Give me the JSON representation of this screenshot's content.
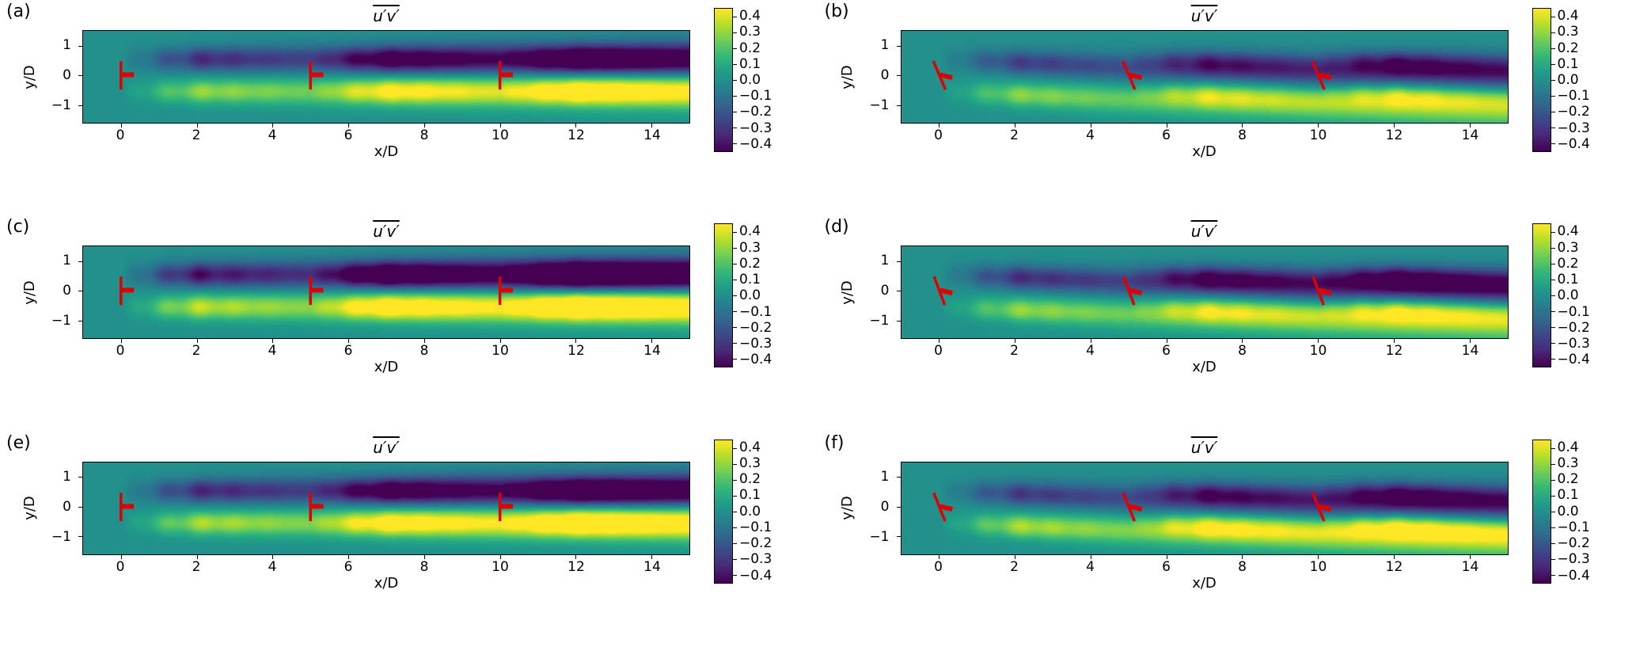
{
  "figure": {
    "background": "#ffffff",
    "description": "Six-panel contour figure of Reynolds shear stress in wind-turbine wakes",
    "turbine_marker_color": "#e00000"
  },
  "palette": {
    "colormap": "viridis",
    "stops": [
      "#440154",
      "#482878",
      "#3e4989",
      "#31688e",
      "#26828e",
      "#1f9e89",
      "#35b779",
      "#6ece58",
      "#b5de2b",
      "#fde725"
    ]
  },
  "chart_data": [
    {
      "panel_label": "(a)",
      "type": "heatmap",
      "title": "u′v′",
      "title_overline": true,
      "xlabel": "x/D",
      "ylabel": "y/D",
      "xlim": [
        -1.0,
        15.0
      ],
      "ylim": [
        -1.6,
        1.5
      ],
      "xtick_values": [
        0,
        2,
        4,
        6,
        8,
        10,
        12,
        14
      ],
      "xtick_labels": [
        "0",
        "2",
        "4",
        "6",
        "8",
        "10",
        "12",
        "14"
      ],
      "ytick_values": [
        1,
        0,
        -1
      ],
      "ytick_labels": [
        "1",
        "0",
        "−1"
      ],
      "colorbar": {
        "vmin": -0.45,
        "vmax": 0.45,
        "tick_values": [
          0.4,
          0.3,
          0.2,
          0.1,
          0.0,
          -0.1,
          -0.2,
          -0.3,
          -0.4
        ],
        "tick_labels": [
          "0.4",
          "0.3",
          "0.2",
          "0.1",
          "0.0",
          "−0.1",
          "−0.2",
          "−0.3",
          "−0.4"
        ]
      },
      "turbines": {
        "x_positions": [
          0,
          5,
          10
        ],
        "hub_y": 0,
        "tilt_dx": 0,
        "color": "#e00000"
      },
      "field_model": {
        "pos_peak": 0.36,
        "neg_peak": -0.4,
        "deflection_per_D": 0.0,
        "layer_offset": 0.55,
        "layer_width": 0.26,
        "growth_length": 2.2,
        "decay_length": 13
      }
    },
    {
      "panel_label": "(b)",
      "type": "heatmap",
      "title": "u′v′",
      "title_overline": true,
      "xlabel": "x/D",
      "ylabel": "y/D",
      "xlim": [
        -1.0,
        15.0
      ],
      "ylim": [
        -1.6,
        1.5
      ],
      "xtick_values": [
        0,
        2,
        4,
        6,
        8,
        10,
        12,
        14
      ],
      "xtick_labels": [
        "0",
        "2",
        "4",
        "6",
        "8",
        "10",
        "12",
        "14"
      ],
      "ytick_values": [
        1,
        0,
        -1
      ],
      "ytick_labels": [
        "1",
        "0",
        "−1"
      ],
      "colorbar": {
        "vmin": -0.45,
        "vmax": 0.45,
        "tick_values": [
          0.4,
          0.3,
          0.2,
          0.1,
          0.0,
          -0.1,
          -0.2,
          -0.3,
          -0.4
        ],
        "tick_labels": [
          "0.4",
          "0.3",
          "0.2",
          "0.1",
          "0.0",
          "−0.1",
          "−0.2",
          "−0.3",
          "−0.4"
        ]
      },
      "turbines": {
        "x_positions": [
          0,
          5,
          10
        ],
        "hub_y": 0,
        "tilt_dx": 0.16,
        "color": "#e00000"
      },
      "field_model": {
        "pos_peak": 0.34,
        "neg_peak": -0.34,
        "deflection_per_D": 0.055,
        "layer_offset": 0.55,
        "layer_width": 0.26,
        "growth_length": 2.2,
        "decay_length": 13
      }
    },
    {
      "panel_label": "(c)",
      "type": "heatmap",
      "title": "u′v′",
      "title_overline": true,
      "xlabel": "x/D",
      "ylabel": "y/D",
      "xlim": [
        -1.0,
        15.0
      ],
      "ylim": [
        -1.6,
        1.5
      ],
      "xtick_values": [
        0,
        2,
        4,
        6,
        8,
        10,
        12,
        14
      ],
      "xtick_labels": [
        "0",
        "2",
        "4",
        "6",
        "8",
        "10",
        "12",
        "14"
      ],
      "ytick_values": [
        1,
        0,
        -1
      ],
      "ytick_labels": [
        "1",
        "0",
        "−1"
      ],
      "colorbar": {
        "vmin": -0.45,
        "vmax": 0.45,
        "tick_values": [
          0.4,
          0.3,
          0.2,
          0.1,
          0.0,
          -0.1,
          -0.2,
          -0.3,
          -0.4
        ],
        "tick_labels": [
          "0.4",
          "0.3",
          "0.2",
          "0.1",
          "0.0",
          "−0.1",
          "−0.2",
          "−0.3",
          "−0.4"
        ]
      },
      "turbines": {
        "x_positions": [
          0,
          5,
          10
        ],
        "hub_y": 0,
        "tilt_dx": 0,
        "color": "#e00000"
      },
      "field_model": {
        "pos_peak": 0.42,
        "neg_peak": -0.48,
        "deflection_per_D": 0.0,
        "layer_offset": 0.55,
        "layer_width": 0.27,
        "growth_length": 2.0,
        "decay_length": 13
      }
    },
    {
      "panel_label": "(d)",
      "type": "heatmap",
      "title": "u′v′",
      "title_overline": true,
      "xlabel": "x/D",
      "ylabel": "y/D",
      "xlim": [
        -1.0,
        15.0
      ],
      "ylim": [
        -1.6,
        1.5
      ],
      "xtick_values": [
        0,
        2,
        4,
        6,
        8,
        10,
        12,
        14
      ],
      "xtick_labels": [
        "0",
        "2",
        "4",
        "6",
        "8",
        "10",
        "12",
        "14"
      ],
      "ytick_values": [
        1,
        0,
        -1
      ],
      "ytick_labels": [
        "1",
        "0",
        "−1"
      ],
      "colorbar": {
        "vmin": -0.45,
        "vmax": 0.45,
        "tick_values": [
          0.4,
          0.3,
          0.2,
          0.1,
          0.0,
          -0.1,
          -0.2,
          -0.3,
          -0.4
        ],
        "tick_labels": [
          "0.4",
          "0.3",
          "0.2",
          "0.1",
          "0.0",
          "−0.1",
          "−0.2",
          "−0.3",
          "−0.4"
        ]
      },
      "turbines": {
        "x_positions": [
          0,
          5,
          10
        ],
        "hub_y": 0,
        "tilt_dx": 0.14,
        "color": "#e00000"
      },
      "field_model": {
        "pos_peak": 0.36,
        "neg_peak": -0.4,
        "deflection_per_D": 0.05,
        "layer_offset": 0.55,
        "layer_width": 0.26,
        "growth_length": 2.2,
        "decay_length": 13
      }
    },
    {
      "panel_label": "(e)",
      "type": "heatmap",
      "title": "u′v′",
      "title_overline": true,
      "xlabel": "x/D",
      "ylabel": "y/D",
      "xlim": [
        -1.0,
        15.0
      ],
      "ylim": [
        -1.6,
        1.5
      ],
      "xtick_values": [
        0,
        2,
        4,
        6,
        8,
        10,
        12,
        14
      ],
      "xtick_labels": [
        "0",
        "2",
        "4",
        "6",
        "8",
        "10",
        "12",
        "14"
      ],
      "ytick_values": [
        1,
        0,
        -1
      ],
      "ytick_labels": [
        "1",
        "0",
        "−1"
      ],
      "colorbar": {
        "vmin": -0.45,
        "vmax": 0.45,
        "tick_values": [
          0.4,
          0.3,
          0.2,
          0.1,
          0.0,
          -0.1,
          -0.2,
          -0.3,
          -0.4
        ],
        "tick_labels": [
          "0.4",
          "0.3",
          "0.2",
          "0.1",
          "0.0",
          "−0.1",
          "−0.2",
          "−0.3",
          "−0.4"
        ]
      },
      "turbines": {
        "x_positions": [
          0,
          5,
          10
        ],
        "hub_y": 0,
        "tilt_dx": 0,
        "color": "#e00000"
      },
      "field_model": {
        "pos_peak": 0.4,
        "neg_peak": -0.42,
        "deflection_per_D": 0.0,
        "layer_offset": 0.55,
        "layer_width": 0.26,
        "growth_length": 2.2,
        "decay_length": 13
      }
    },
    {
      "panel_label": "(f)",
      "type": "heatmap",
      "title": "u′v′",
      "title_overline": true,
      "xlabel": "x/D",
      "ylabel": "y/D",
      "xlim": [
        -1.0,
        15.0
      ],
      "ylim": [
        -1.6,
        1.5
      ],
      "xtick_values": [
        0,
        2,
        4,
        6,
        8,
        10,
        12,
        14
      ],
      "xtick_labels": [
        "0",
        "2",
        "4",
        "6",
        "8",
        "10",
        "12",
        "14"
      ],
      "ytick_values": [
        1,
        0,
        -1
      ],
      "ytick_labels": [
        "1",
        "0",
        "−1"
      ],
      "colorbar": {
        "vmin": -0.45,
        "vmax": 0.45,
        "tick_values": [
          0.4,
          0.3,
          0.2,
          0.1,
          0.0,
          -0.1,
          -0.2,
          -0.3,
          -0.4
        ],
        "tick_labels": [
          "0.4",
          "0.3",
          "0.2",
          "0.1",
          "0.0",
          "−0.1",
          "−0.2",
          "−0.3",
          "−0.4"
        ]
      },
      "turbines": {
        "x_positions": [
          0,
          5,
          10
        ],
        "hub_y": 0,
        "tilt_dx": 0.15,
        "color": "#e00000"
      },
      "field_model": {
        "pos_peak": 0.4,
        "neg_peak": -0.36,
        "deflection_per_D": 0.05,
        "layer_offset": 0.55,
        "layer_width": 0.26,
        "growth_length": 2.2,
        "decay_length": 13
      }
    }
  ]
}
